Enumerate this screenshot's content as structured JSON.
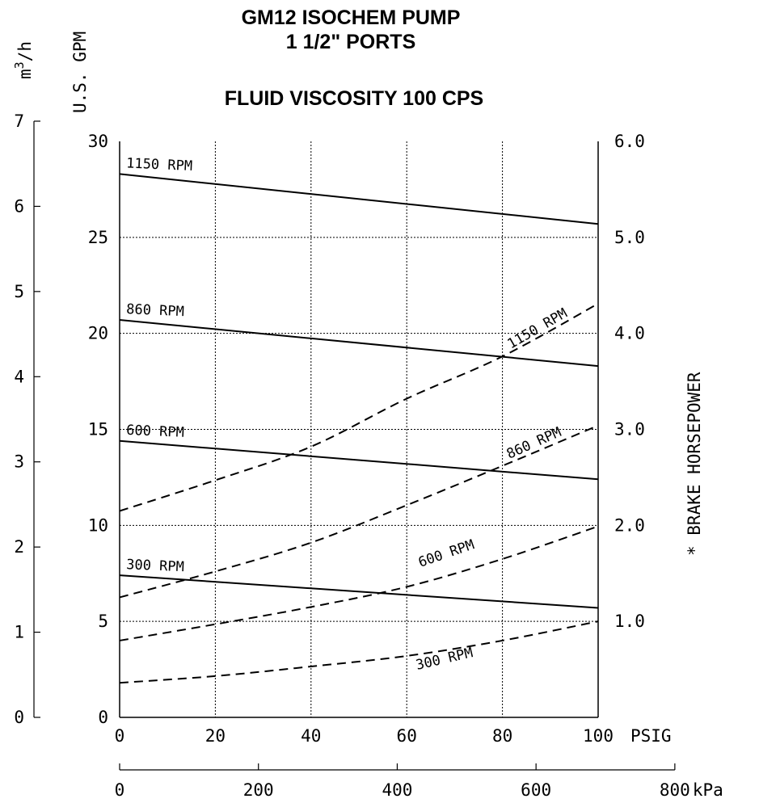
{
  "chart_data": {
    "type": "line",
    "title_lines": [
      "GM12 ISOCHEM PUMP",
      "1 1/2\" PORTS",
      "FLUID VISCOSITY 100 CPS"
    ],
    "x_axis": {
      "label": "PSIG",
      "range": [
        0,
        100
      ],
      "ticks": [
        0,
        20,
        40,
        60,
        80,
        100
      ],
      "tick_labels": [
        "0",
        "20",
        "40",
        "60",
        "80",
        "100"
      ]
    },
    "x_axis_secondary": {
      "label": "kPa",
      "ticks": [
        0,
        200,
        400,
        600,
        800
      ],
      "tick_labels": [
        "0",
        "200",
        "400",
        "600",
        "800"
      ]
    },
    "y_axis_left": {
      "label": "U.S. GPM",
      "range": [
        0,
        30
      ],
      "ticks": [
        0,
        5,
        10,
        15,
        20,
        25,
        30
      ],
      "tick_labels": [
        "0",
        "5",
        "10",
        "15",
        "20",
        "25",
        "30"
      ]
    },
    "y_axis_left_metric": {
      "label": "m³/h",
      "range": [
        0,
        7
      ],
      "ticks": [
        0,
        1,
        2,
        3,
        4,
        5,
        6,
        7
      ],
      "tick_labels": [
        "0",
        "1",
        "2",
        "3",
        "4",
        "5",
        "6",
        "7"
      ]
    },
    "y_axis_right": {
      "label": "* BRAKE HORSEPOWER",
      "range": [
        0,
        6
      ],
      "ticks": [
        1,
        2,
        3,
        4,
        5,
        6
      ],
      "tick_labels": [
        "1.0",
        "2.0",
        "3.0",
        "4.0",
        "5.0",
        "6.0"
      ]
    },
    "grid": true,
    "flow_series": [
      {
        "name": "1150 RPM",
        "x": [
          0,
          100
        ],
        "y": [
          28.3,
          25.7
        ]
      },
      {
        "name": "860 RPM",
        "x": [
          0,
          100
        ],
        "y": [
          20.7,
          18.3
        ]
      },
      {
        "name": "600 RPM",
        "x": [
          0,
          100
        ],
        "y": [
          14.4,
          12.4
        ]
      },
      {
        "name": "300 RPM",
        "x": [
          0,
          100
        ],
        "y": [
          7.4,
          5.7
        ]
      }
    ],
    "hp_series": [
      {
        "name": "1150 RPM",
        "x": [
          0,
          20,
          40,
          60,
          80,
          100
        ],
        "y": [
          2.15,
          2.47,
          2.82,
          3.32,
          3.76,
          4.31
        ]
      },
      {
        "name": "860 RPM",
        "x": [
          0,
          20,
          40,
          60,
          80,
          100
        ],
        "y": [
          1.25,
          1.52,
          1.82,
          2.21,
          2.62,
          3.04
        ]
      },
      {
        "name": "600 RPM",
        "x": [
          0,
          20,
          40,
          60,
          80,
          100
        ],
        "y": [
          0.8,
          0.97,
          1.15,
          1.36,
          1.65,
          1.99
        ]
      },
      {
        "name": "300 RPM",
        "x": [
          0,
          20,
          40,
          60,
          80,
          100
        ],
        "y": [
          0.36,
          0.43,
          0.53,
          0.64,
          0.8,
          1.0
        ]
      }
    ]
  }
}
